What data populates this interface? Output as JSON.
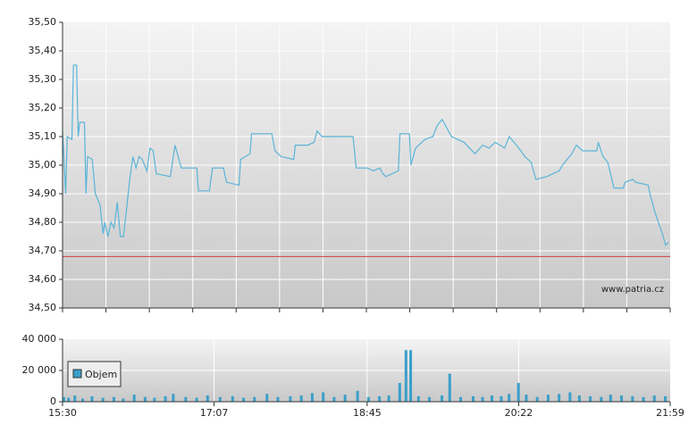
{
  "chart_data": [
    {
      "type": "line",
      "color": "#5ab4d8",
      "x": [
        "15:30",
        "15:32",
        "15:33",
        "15:36",
        "15:37",
        "15:39",
        "15:40",
        "15:41",
        "15:44",
        "15:45",
        "15:46",
        "15:49",
        "15:51",
        "15:54",
        "15:56",
        "15:57",
        "15:59",
        "16:01",
        "16:03",
        "16:05",
        "16:07",
        "16:09",
        "16:11",
        "16:13",
        "16:15",
        "16:17",
        "16:19",
        "16:21",
        "16:24",
        "16:26",
        "16:28",
        "16:30",
        "16:39",
        "16:42",
        "16:46",
        "16:56",
        "16:57",
        "17:04",
        "17:06",
        "17:13",
        "17:15",
        "17:23",
        "17:24",
        "17:30",
        "17:31",
        "17:44",
        "17:46",
        "17:50",
        "17:58",
        "17:59",
        "18:07",
        "18:11",
        "18:13",
        "18:16",
        "18:36",
        "18:38",
        "18:45",
        "18:49",
        "18:53",
        "18:55",
        "18:57",
        "19:05",
        "19:06",
        "19:12",
        "19:13",
        "19:16",
        "19:22",
        "19:27",
        "19:30",
        "19:33",
        "19:36",
        "19:39",
        "19:43",
        "19:47",
        "19:54",
        "19:59",
        "20:03",
        "20:07",
        "20:13",
        "20:16",
        "20:22",
        "20:26",
        "20:30",
        "20:33",
        "20:40",
        "20:48",
        "20:50",
        "20:56",
        "20:59",
        "21:03",
        "21:12",
        "21:13",
        "21:16",
        "21:19",
        "21:23",
        "21:29",
        "21:30",
        "21:35",
        "21:37",
        "21:45",
        "21:46",
        "21:49",
        "21:52",
        "21:54",
        "21:56",
        "21:58"
      ],
      "values": [
        35.12,
        34.9,
        35.1,
        35.09,
        35.35,
        35.35,
        35.1,
        35.15,
        35.15,
        34.9,
        35.03,
        35.02,
        34.9,
        34.86,
        34.76,
        34.8,
        34.75,
        34.8,
        34.78,
        34.87,
        34.75,
        34.75,
        34.85,
        34.95,
        35.03,
        34.99,
        35.03,
        35.02,
        34.98,
        35.06,
        35.05,
        34.97,
        34.96,
        35.07,
        34.99,
        34.99,
        34.91,
        34.91,
        34.99,
        34.99,
        34.94,
        34.93,
        35.02,
        35.04,
        35.11,
        35.11,
        35.05,
        35.03,
        35.02,
        35.07,
        35.07,
        35.08,
        35.12,
        35.1,
        35.1,
        34.99,
        34.99,
        34.98,
        34.99,
        34.97,
        34.96,
        34.98,
        35.11,
        35.11,
        35.0,
        35.06,
        35.09,
        35.1,
        35.14,
        35.16,
        35.13,
        35.1,
        35.09,
        35.08,
        35.04,
        35.07,
        35.06,
        35.08,
        35.06,
        35.1,
        35.06,
        35.03,
        35.01,
        34.95,
        34.96,
        34.98,
        35.0,
        35.04,
        35.07,
        35.05,
        35.05,
        35.08,
        35.03,
        35.01,
        34.92,
        34.92,
        34.94,
        34.95,
        34.94,
        34.93,
        34.9,
        34.84,
        34.79,
        34.76,
        34.72,
        34.73
      ],
      "xlim": [
        "15:30",
        "21:59"
      ],
      "ylim": [
        34.5,
        35.5
      ],
      "yticks": [
        {
          "value": 35.5,
          "label": "35,50"
        },
        {
          "value": 35.4,
          "label": "35,40"
        },
        {
          "value": 35.3,
          "label": "35,30"
        },
        {
          "value": 35.2,
          "label": "35,20"
        },
        {
          "value": 35.1,
          "label": "35,10"
        },
        {
          "value": 35.0,
          "label": "35,00"
        },
        {
          "value": 34.9,
          "label": "34,90"
        },
        {
          "value": 34.8,
          "label": "34,80"
        },
        {
          "value": 34.7,
          "label": "34,70"
        },
        {
          "value": 34.6,
          "label": "34,60"
        },
        {
          "value": 34.5,
          "label": "34,50"
        }
      ],
      "reference_line": 34.68,
      "reference_color": "#d04040",
      "annotation": "www.patria.cz",
      "grid": true
    },
    {
      "type": "bar",
      "x": [
        "15:30",
        "15:33",
        "15:37",
        "15:42",
        "15:48",
        "15:55",
        "16:02",
        "16:08",
        "16:15",
        "16:22",
        "16:28",
        "16:35",
        "16:40",
        "16:48",
        "16:55",
        "17:02",
        "17:10",
        "17:18",
        "17:25",
        "17:32",
        "17:40",
        "17:47",
        "17:55",
        "18:02",
        "18:09",
        "18:16",
        "18:23",
        "18:30",
        "18:38",
        "18:45",
        "18:52",
        "18:58",
        "19:05",
        "19:09",
        "19:12",
        "19:17",
        "19:24",
        "19:32",
        "19:37",
        "19:44",
        "19:52",
        "19:58",
        "20:04",
        "20:10",
        "20:15",
        "20:21",
        "20:26",
        "20:33",
        "20:40",
        "20:47",
        "20:54",
        "21:00",
        "21:07",
        "21:14",
        "21:20",
        "21:27",
        "21:34",
        "21:41",
        "21:48",
        "21:55"
      ],
      "series": [
        {
          "name": "Objem",
          "color": "#3a9fc9",
          "values": [
            3000,
            2500,
            4000,
            2000,
            3500,
            2500,
            3000,
            2000,
            4500,
            3000,
            2500,
            3500,
            5000,
            3000,
            2500,
            4000,
            3000,
            3500,
            2500,
            3000,
            5000,
            3000,
            3500,
            4000,
            5500,
            6000,
            3000,
            4500,
            7000,
            3000,
            3500,
            4000,
            12000,
            33000,
            33000,
            3500,
            3000,
            4000,
            18000,
            3000,
            3500,
            3000,
            4000,
            3500,
            5000,
            12000,
            4500,
            3000,
            4500,
            5000,
            6000,
            4000,
            3500,
            3000,
            4500,
            4000,
            3500,
            3000,
            4000,
            3500
          ]
        }
      ],
      "xlim": [
        "15:30",
        "21:59"
      ],
      "xticks": [
        "15:30",
        "17:07",
        "18:45",
        "20:22",
        "21:59"
      ],
      "ylim": [
        0,
        40000
      ],
      "yticks": [
        {
          "value": 40000,
          "label": "40 000"
        },
        {
          "value": 20000,
          "label": "20 000"
        },
        0
      ],
      "grid": true
    }
  ]
}
